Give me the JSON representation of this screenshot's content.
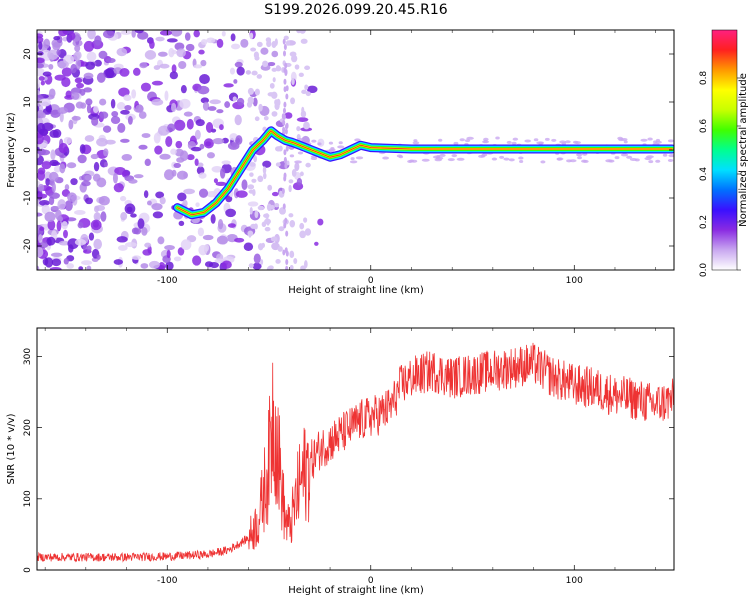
{
  "title": "S199.2026.099.20.45.R16",
  "chart_data": [
    {
      "type": "heatmap",
      "title": "",
      "xlabel": "Height of straight line (km)",
      "ylabel": "Frequency (Hz)",
      "xlim": [
        -164,
        149
      ],
      "ylim": [
        -25,
        25
      ],
      "xticks": [
        -100,
        0,
        100
      ],
      "yticks": [
        -20,
        -10,
        0,
        10,
        20
      ],
      "ridge": {
        "x": [
          -95,
          -88,
          -82,
          -76,
          -70,
          -64,
          -58,
          -53,
          -49,
          -46,
          -42,
          -38,
          -32,
          -26,
          -20,
          -15,
          -10,
          -5,
          0,
          20,
          60,
          100,
          148
        ],
        "y": [
          -12,
          -13.5,
          -13,
          -11,
          -8,
          -4,
          0,
          2,
          4,
          3,
          2,
          1.5,
          0.5,
          -0.5,
          -1.5,
          -1,
          0,
          1,
          0.5,
          0.2,
          0.2,
          0.2,
          0.2
        ]
      },
      "colorbar": {
        "label": "Normalized spectral amplitude",
        "range": [
          0,
          1
        ],
        "ticks": [
          "0.0",
          "0.2",
          "0.4",
          "0.6",
          "0.8"
        ],
        "colors": [
          "#ffffff",
          "#c9a8f0",
          "#8a2be2",
          "#3a10ff",
          "#0070ff",
          "#00e0ff",
          "#00ff90",
          "#40ff00",
          "#c8ff00",
          "#ffff00",
          "#ff9900",
          "#ff2020",
          "#ff2080"
        ]
      }
    },
    {
      "type": "line",
      "title": "",
      "xlabel": "Height of straight line (km)",
      "ylabel": "SNR (10 * v/v)",
      "xlim": [
        -164,
        149
      ],
      "ylim": [
        0,
        340
      ],
      "xticks": [
        -100,
        0,
        100
      ],
      "yticks": [
        0,
        100,
        200,
        300
      ],
      "series": [
        {
          "name": "SNR",
          "color": "#ee3333",
          "x": [
            -164,
            -140,
            -120,
            -100,
            -80,
            -70,
            -60,
            -55,
            -50,
            -48,
            -46,
            -44,
            -42,
            -40,
            -38,
            -35,
            -30,
            -25,
            -20,
            -15,
            -10,
            -5,
            0,
            5,
            10,
            15,
            20,
            30,
            40,
            50,
            60,
            70,
            80,
            90,
            100,
            110,
            120,
            130,
            140,
            149
          ],
          "values": [
            18,
            18,
            18,
            19,
            22,
            28,
            45,
            70,
            150,
            230,
            180,
            120,
            70,
            60,
            80,
            120,
            150,
            170,
            180,
            190,
            200,
            210,
            215,
            220,
            230,
            260,
            270,
            280,
            270,
            275,
            280,
            285,
            290,
            270,
            260,
            255,
            245,
            240,
            232,
            240
          ]
        }
      ]
    }
  ]
}
